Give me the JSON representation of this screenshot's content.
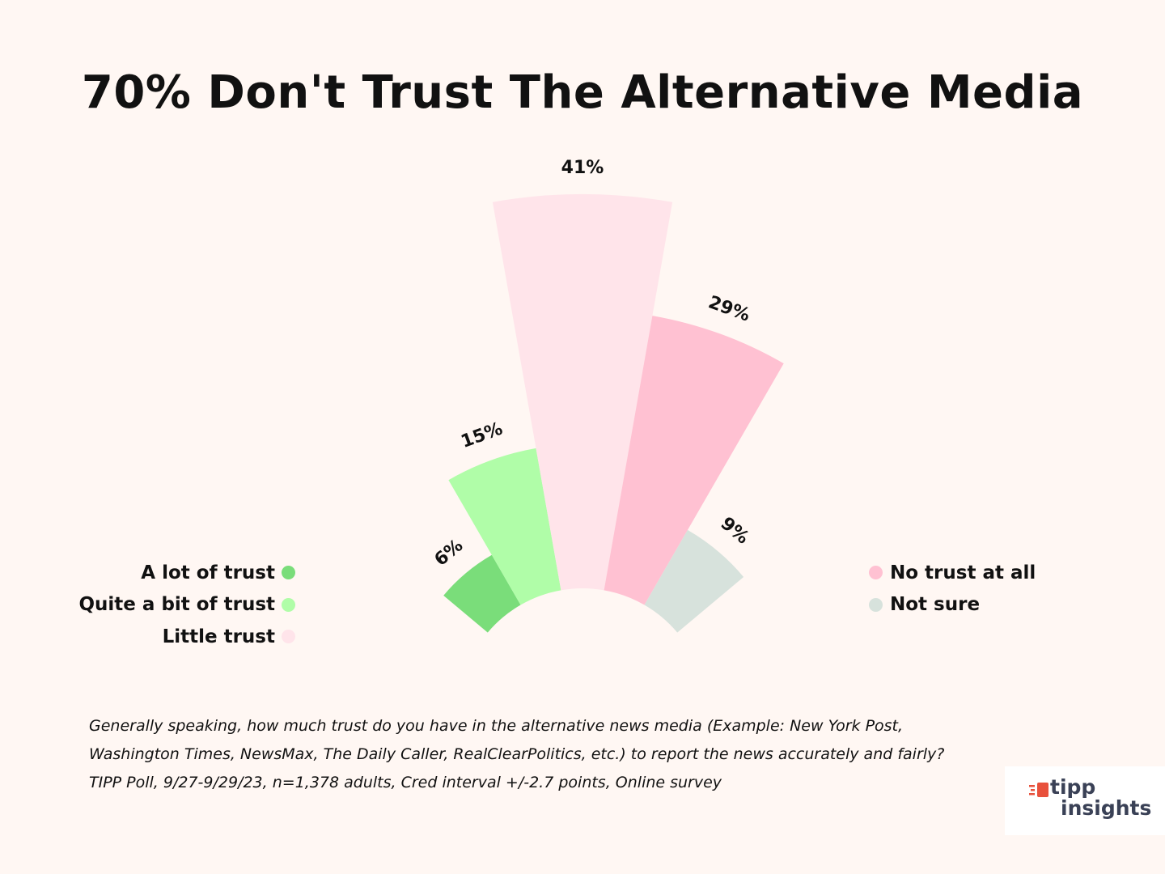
{
  "title": "70% Don't Trust The Alternative Media",
  "chart_data": {
    "type": "pie",
    "subtype": "polar-area (radial bar)",
    "categories": [
      "A lot of trust",
      "Quite a bit of trust",
      "Little trust",
      "No trust at all",
      "Not sure"
    ],
    "values": [
      6,
      15,
      41,
      29,
      9
    ],
    "labels": [
      "6%",
      "15%",
      "41%",
      "29%",
      "9%"
    ],
    "colors": [
      "#7add7a",
      "#b0fda8",
      "#ffe4ea",
      "#ffc1d2",
      "#d7e2dc"
    ],
    "max_value": 41,
    "legend_placement": "split left and right of chart"
  },
  "legend": {
    "left": [
      {
        "label": "A lot of trust",
        "color": "#7add7a"
      },
      {
        "label": "Quite a bit of trust",
        "color": "#b0fda8"
      },
      {
        "label": "Little trust",
        "color": "#ffe4ea"
      }
    ],
    "right": [
      {
        "label": "No trust at all",
        "color": "#ffc1d2"
      },
      {
        "label": "Not sure",
        "color": "#d7e2dc"
      }
    ]
  },
  "note": "Generally speaking, how much trust do you have in the alternative news  media (Example: New York Post, Washington Times, NewsMax, The Daily  Caller, RealClearPolitics, etc.) to report the news accurately and fairly? TIPP Poll, 9/27-9/29/23, n=1,378 adults, Cred interval +/-2.7 points, Online survey",
  "logo": {
    "line1": "tipp",
    "line2": "insights",
    "accent": "#e8513c",
    "text_color": "#3a4156",
    "icon": "tipp-logo-icon"
  }
}
